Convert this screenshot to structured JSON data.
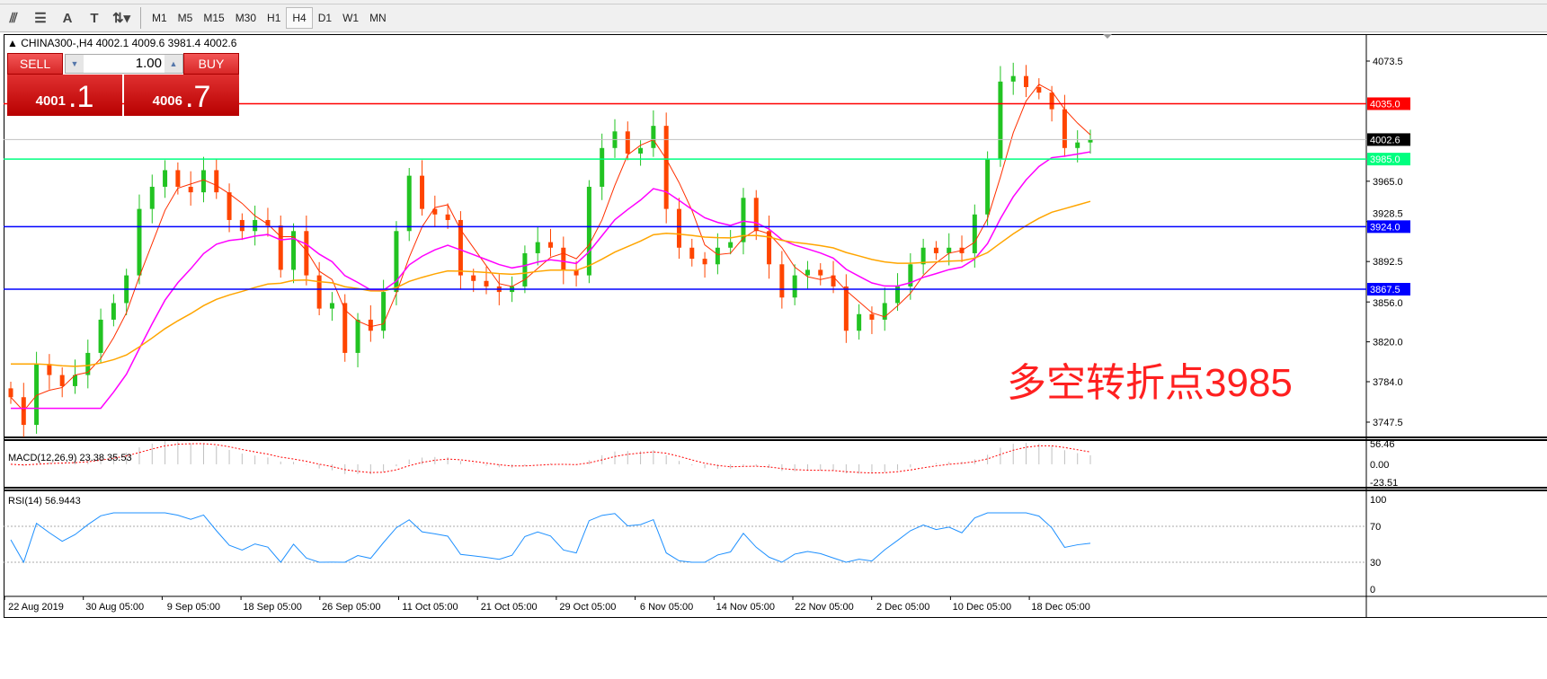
{
  "toolbar": {
    "icons": [
      "fibonacci-expansion-icon",
      "fibonacci-fan-icon",
      "text-icon",
      "text-label-icon",
      "arrows-icon"
    ],
    "text_icon": "A",
    "label_icon": "T",
    "timeframes": [
      "M1",
      "M5",
      "M15",
      "M30",
      "H1",
      "H4",
      "D1",
      "W1",
      "MN"
    ],
    "active_timeframe": "H4"
  },
  "header": {
    "symbol_line": "CHINA300-,H4  4002.1 4009.6 3981.4 4002.6"
  },
  "trade_panel": {
    "sell_label": "SELL",
    "buy_label": "BUY",
    "lot": "1.00",
    "sell_big": "4001",
    "sell_small": ".1",
    "buy_big": "4006",
    "buy_small": ".7"
  },
  "annotation": "多空转折点3985",
  "colors": {
    "bull": "#22c322",
    "bear": "#ff4500",
    "resistance": "#ff0000",
    "pivot": "#00ff7f",
    "support": "#0000ff",
    "ma_fast": "#ff3000",
    "ma_mid": "#ff00ff",
    "ma_slow": "#ffa500",
    "rsi": "#1e90ff",
    "macd_signal": "#ff0000"
  },
  "price_axis": {
    "ticks": [
      "4073.5",
      "3965.0",
      "3928.5",
      "3892.5",
      "3856.0",
      "3820.0",
      "3784.0",
      "3747.5"
    ]
  },
  "levels": [
    {
      "label": "4035.0",
      "value": 4035.0,
      "color": "#ff0000"
    },
    {
      "label": "4002.6",
      "value": 4002.6,
      "color": "#000000",
      "kind": "bid"
    },
    {
      "label": "3985.0",
      "value": 3985.0,
      "color": "#00ff7f"
    },
    {
      "label": "3924.0",
      "value": 3924.0,
      "color": "#0000ff"
    },
    {
      "label": "3867.5",
      "value": 3867.5,
      "color": "#0000ff"
    }
  ],
  "macd": {
    "label": "MACD(12,26,9) 23.38 35.53",
    "ticks": [
      "56.46",
      "0.00",
      "-23.51"
    ]
  },
  "rsi": {
    "label": "RSI(14) 56.9443",
    "ticks": [
      "100",
      "70",
      "30",
      "0"
    ]
  },
  "time_axis": [
    "22 Aug 2019",
    "30 Aug 05:00",
    "9 Sep 05:00",
    "18 Sep 05:00",
    "26 Sep 05:00",
    "11 Oct 05:00",
    "21 Oct 05:00",
    "29 Oct 05:00",
    "6 Nov 05:00",
    "14 Nov 05:00",
    "22 Nov 05:00",
    "2 Dec 05:00",
    "10 Dec 05:00",
    "18 Dec 05:00"
  ],
  "chart_data": {
    "type": "candlestick",
    "ylim": [
      3735,
      4090
    ],
    "closes": [
      3770,
      3745,
      3800,
      3790,
      3780,
      3790,
      3810,
      3840,
      3855,
      3880,
      3940,
      3960,
      3975,
      3960,
      3955,
      3975,
      3955,
      3930,
      3920,
      3930,
      3925,
      3885,
      3920,
      3880,
      3850,
      3855,
      3810,
      3840,
      3830,
      3865,
      3920,
      3970,
      3940,
      3935,
      3930,
      3880,
      3875,
      3870,
      3865,
      3870,
      3900,
      3910,
      3905,
      3885,
      3880,
      3960,
      3995,
      4010,
      3990,
      3995,
      4015,
      3940,
      3905,
      3895,
      3890,
      3905,
      3910,
      3950,
      3920,
      3890,
      3860,
      3880,
      3885,
      3880,
      3870,
      3830,
      3845,
      3840,
      3855,
      3870,
      3890,
      3905,
      3900,
      3905,
      3900,
      3935,
      3985,
      4055,
      4060,
      4050,
      4045,
      4030,
      3995,
      4000,
      4002.6
    ]
  }
}
